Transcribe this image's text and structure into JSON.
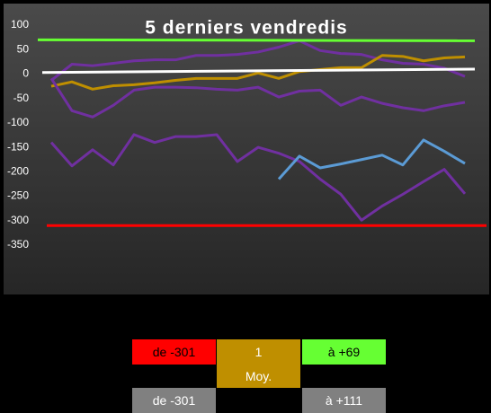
{
  "chart_data": {
    "type": "line",
    "title": "5 derniers vendredis",
    "categories": [
      null,
      null,
      null,
      null,
      null,
      null,
      null,
      null,
      null,
      null,
      null,
      null,
      null,
      null,
      null,
      null,
      null,
      null,
      null,
      null,
      null
    ],
    "ylim": [
      -350,
      100
    ],
    "yticks": [
      100,
      50,
      0,
      -50,
      -100,
      -150,
      -200,
      -250,
      -300,
      -350
    ],
    "grid": false,
    "series": [
      {
        "color": "#7030a0",
        "values": [
          -13,
          20,
          17,
          22,
          27,
          29,
          29,
          38,
          38,
          40,
          45,
          55,
          68,
          48,
          42,
          40,
          29,
          22,
          20,
          12,
          -5
        ]
      },
      {
        "color": "#bf8f00",
        "values": [
          -25,
          -16,
          -31,
          -24,
          -22,
          -18,
          -13,
          -9,
          -9,
          -9,
          2,
          -9,
          5,
          9,
          13,
          13,
          38,
          36,
          27,
          33,
          35
        ]
      },
      {
        "color": "#7030a0",
        "values": [
          -9,
          -75,
          -88,
          -64,
          -33,
          -27,
          -27,
          -28,
          -31,
          -33,
          -27,
          -47,
          -35,
          -33,
          -64,
          -47,
          -60,
          -69,
          -75,
          -65,
          -58
        ]
      },
      {
        "color": "#7030a0",
        "values": [
          -140,
          -188,
          -155,
          -186,
          -124,
          -140,
          -128,
          -128,
          -124,
          -179,
          -150,
          -162,
          -179,
          -215,
          -246,
          -299,
          -270,
          -246,
          -220,
          -195,
          -245
        ]
      },
      {
        "color": "#5b9bd5",
        "values": [
          null,
          null,
          null,
          null,
          null,
          null,
          null,
          null,
          null,
          null,
          null,
          -215,
          -168,
          -192,
          -184,
          -175,
          -166,
          -186,
          -135,
          -158,
          -183
        ]
      }
    ],
    "reference_lines": [
      {
        "color": "#66ff33",
        "values": [
          70,
          68
        ]
      },
      {
        "color": "#ffffff",
        "values": [
          3,
          10
        ]
      },
      {
        "color": "#ff0000",
        "values": [
          -310,
          -310
        ]
      }
    ]
  },
  "summary": {
    "low": "de -301",
    "middle": "1",
    "middle_label": "Moy.",
    "high": "à +69",
    "low2": "de -301",
    "high2": "à +111"
  }
}
